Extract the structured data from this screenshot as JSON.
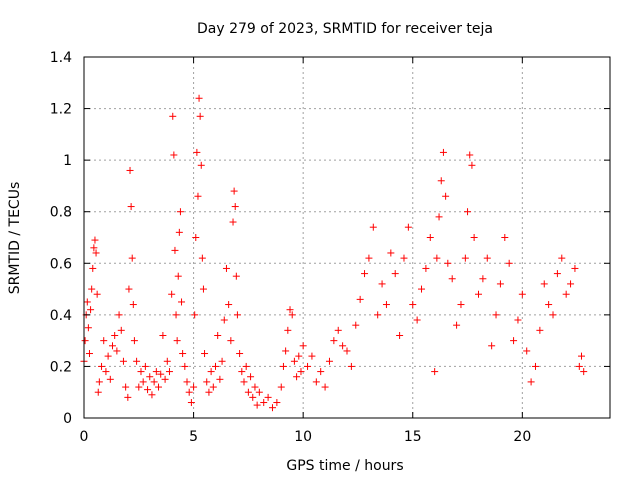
{
  "chart_data": {
    "type": "scatter",
    "title": "Day 279 of 2023, SRMTID for receiver teja",
    "xlabel": "GPS time / hours",
    "ylabel": "SRMTID / TECUs",
    "xlim": [
      0,
      24
    ],
    "ylim": [
      0,
      1.4
    ],
    "xticks": [
      "0",
      "5",
      "10",
      "15",
      "20"
    ],
    "xtick_values": [
      0,
      5,
      10,
      15,
      20
    ],
    "yticks": [
      "0",
      "0.2",
      "0.4",
      "0.6",
      "0.8",
      "1",
      "1.2",
      "1.4"
    ],
    "ytick_values": [
      0,
      0.2,
      0.4,
      0.6,
      0.8,
      1.0,
      1.2,
      1.4
    ],
    "grid": true,
    "marker": "+",
    "color": "#ff0000",
    "series": [
      {
        "name": "SRMTID",
        "points": [
          [
            0.0,
            0.22
          ],
          [
            0.05,
            0.3
          ],
          [
            0.1,
            0.4
          ],
          [
            0.15,
            0.45
          ],
          [
            0.2,
            0.35
          ],
          [
            0.25,
            0.25
          ],
          [
            0.3,
            0.42
          ],
          [
            0.35,
            0.5
          ],
          [
            0.4,
            0.58
          ],
          [
            0.45,
            0.66
          ],
          [
            0.5,
            0.69
          ],
          [
            0.55,
            0.64
          ],
          [
            0.6,
            0.48
          ],
          [
            0.65,
            0.1
          ],
          [
            0.7,
            0.14
          ],
          [
            0.8,
            0.2
          ],
          [
            0.9,
            0.3
          ],
          [
            1.0,
            0.18
          ],
          [
            1.1,
            0.24
          ],
          [
            1.2,
            0.15
          ],
          [
            1.3,
            0.28
          ],
          [
            1.4,
            0.32
          ],
          [
            1.5,
            0.26
          ],
          [
            1.6,
            0.4
          ],
          [
            1.7,
            0.34
          ],
          [
            1.8,
            0.22
          ],
          [
            1.9,
            0.12
          ],
          [
            2.0,
            0.08
          ],
          [
            2.05,
            0.5
          ],
          [
            2.1,
            0.96
          ],
          [
            2.15,
            0.82
          ],
          [
            2.2,
            0.62
          ],
          [
            2.25,
            0.44
          ],
          [
            2.3,
            0.3
          ],
          [
            2.4,
            0.22
          ],
          [
            2.5,
            0.12
          ],
          [
            2.6,
            0.18
          ],
          [
            2.7,
            0.14
          ],
          [
            2.8,
            0.2
          ],
          [
            2.9,
            0.11
          ],
          [
            3.0,
            0.16
          ],
          [
            3.1,
            0.09
          ],
          [
            3.2,
            0.14
          ],
          [
            3.3,
            0.18
          ],
          [
            3.4,
            0.12
          ],
          [
            3.5,
            0.17
          ],
          [
            3.6,
            0.32
          ],
          [
            3.7,
            0.15
          ],
          [
            3.8,
            0.22
          ],
          [
            3.9,
            0.18
          ],
          [
            4.0,
            0.48
          ],
          [
            4.05,
            1.17
          ],
          [
            4.1,
            1.02
          ],
          [
            4.15,
            0.65
          ],
          [
            4.2,
            0.4
          ],
          [
            4.25,
            0.3
          ],
          [
            4.3,
            0.55
          ],
          [
            4.35,
            0.72
          ],
          [
            4.4,
            0.8
          ],
          [
            4.45,
            0.45
          ],
          [
            4.5,
            0.25
          ],
          [
            4.6,
            0.2
          ],
          [
            4.7,
            0.14
          ],
          [
            4.8,
            0.1
          ],
          [
            4.9,
            0.06
          ],
          [
            5.0,
            0.12
          ],
          [
            5.05,
            0.4
          ],
          [
            5.1,
            0.7
          ],
          [
            5.15,
            1.03
          ],
          [
            5.2,
            0.86
          ],
          [
            5.25,
            1.24
          ],
          [
            5.3,
            1.17
          ],
          [
            5.35,
            0.98
          ],
          [
            5.4,
            0.62
          ],
          [
            5.45,
            0.5
          ],
          [
            5.5,
            0.25
          ],
          [
            5.6,
            0.14
          ],
          [
            5.7,
            0.1
          ],
          [
            5.8,
            0.18
          ],
          [
            5.9,
            0.12
          ],
          [
            6.0,
            0.2
          ],
          [
            6.1,
            0.32
          ],
          [
            6.2,
            0.15
          ],
          [
            6.3,
            0.22
          ],
          [
            6.4,
            0.38
          ],
          [
            6.5,
            0.58
          ],
          [
            6.6,
            0.44
          ],
          [
            6.7,
            0.3
          ],
          [
            6.8,
            0.76
          ],
          [
            6.85,
            0.88
          ],
          [
            6.9,
            0.82
          ],
          [
            6.95,
            0.55
          ],
          [
            7.0,
            0.4
          ],
          [
            7.1,
            0.25
          ],
          [
            7.2,
            0.18
          ],
          [
            7.3,
            0.14
          ],
          [
            7.4,
            0.2
          ],
          [
            7.5,
            0.1
          ],
          [
            7.6,
            0.16
          ],
          [
            7.7,
            0.08
          ],
          [
            7.8,
            0.12
          ],
          [
            7.9,
            0.05
          ],
          [
            8.0,
            0.1
          ],
          [
            8.2,
            0.06
          ],
          [
            8.4,
            0.08
          ],
          [
            8.6,
            0.04
          ],
          [
            8.8,
            0.06
          ],
          [
            9.0,
            0.12
          ],
          [
            9.1,
            0.2
          ],
          [
            9.2,
            0.26
          ],
          [
            9.3,
            0.34
          ],
          [
            9.4,
            0.42
          ],
          [
            9.5,
            0.4
          ],
          [
            9.6,
            0.22
          ],
          [
            9.7,
            0.16
          ],
          [
            9.8,
            0.24
          ],
          [
            9.9,
            0.18
          ],
          [
            10.0,
            0.28
          ],
          [
            10.2,
            0.2
          ],
          [
            10.4,
            0.24
          ],
          [
            10.6,
            0.14
          ],
          [
            10.8,
            0.18
          ],
          [
            11.0,
            0.12
          ],
          [
            11.2,
            0.22
          ],
          [
            11.4,
            0.3
          ],
          [
            11.6,
            0.34
          ],
          [
            11.8,
            0.28
          ],
          [
            12.0,
            0.26
          ],
          [
            12.2,
            0.2
          ],
          [
            12.4,
            0.36
          ],
          [
            12.6,
            0.46
          ],
          [
            12.8,
            0.56
          ],
          [
            13.0,
            0.62
          ],
          [
            13.2,
            0.74
          ],
          [
            13.4,
            0.4
          ],
          [
            13.6,
            0.52
          ],
          [
            13.8,
            0.44
          ],
          [
            14.0,
            0.64
          ],
          [
            14.2,
            0.56
          ],
          [
            14.4,
            0.32
          ],
          [
            14.6,
            0.62
          ],
          [
            14.8,
            0.74
          ],
          [
            15.0,
            0.44
          ],
          [
            15.2,
            0.38
          ],
          [
            15.4,
            0.5
          ],
          [
            15.6,
            0.58
          ],
          [
            15.8,
            0.7
          ],
          [
            16.0,
            0.18
          ],
          [
            16.1,
            0.62
          ],
          [
            16.2,
            0.78
          ],
          [
            16.3,
            0.92
          ],
          [
            16.4,
            1.03
          ],
          [
            16.5,
            0.86
          ],
          [
            16.6,
            0.6
          ],
          [
            16.8,
            0.54
          ],
          [
            17.0,
            0.36
          ],
          [
            17.2,
            0.44
          ],
          [
            17.4,
            0.62
          ],
          [
            17.5,
            0.8
          ],
          [
            17.6,
            1.02
          ],
          [
            17.7,
            0.98
          ],
          [
            17.8,
            0.7
          ],
          [
            18.0,
            0.48
          ],
          [
            18.2,
            0.54
          ],
          [
            18.4,
            0.62
          ],
          [
            18.6,
            0.28
          ],
          [
            18.8,
            0.4
          ],
          [
            19.0,
            0.52
          ],
          [
            19.2,
            0.7
          ],
          [
            19.4,
            0.6
          ],
          [
            19.6,
            0.3
          ],
          [
            19.8,
            0.38
          ],
          [
            20.0,
            0.48
          ],
          [
            20.2,
            0.26
          ],
          [
            20.4,
            0.14
          ],
          [
            20.6,
            0.2
          ],
          [
            20.8,
            0.34
          ],
          [
            21.0,
            0.52
          ],
          [
            21.2,
            0.44
          ],
          [
            21.4,
            0.4
          ],
          [
            21.6,
            0.56
          ],
          [
            21.8,
            0.62
          ],
          [
            22.0,
            0.48
          ],
          [
            22.2,
            0.52
          ],
          [
            22.4,
            0.58
          ],
          [
            22.6,
            0.2
          ],
          [
            22.7,
            0.24
          ],
          [
            22.8,
            0.18
          ]
        ]
      }
    ]
  }
}
